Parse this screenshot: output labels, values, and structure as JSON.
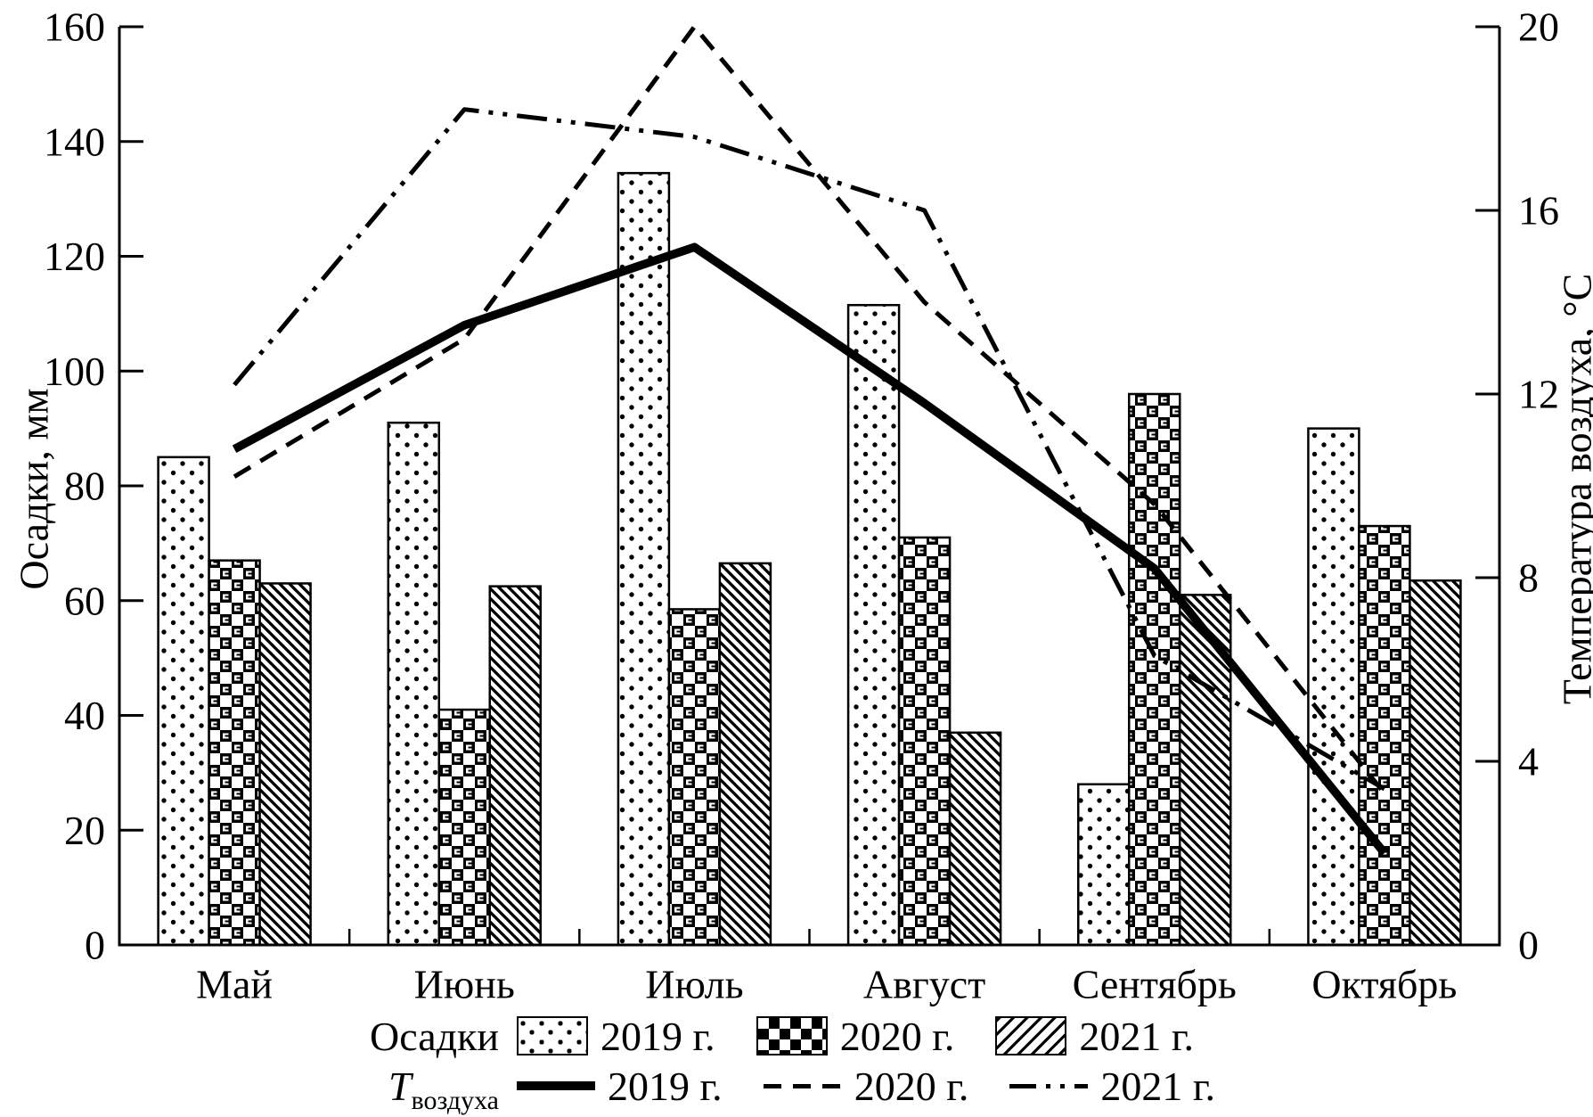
{
  "chart_data": {
    "type": "bar+line",
    "categories": [
      "Май",
      "Июнь",
      "Июль",
      "Август",
      "Сентябрь",
      "Октябрь"
    ],
    "left_axis": {
      "label": "Осадки, мм",
      "min": 0,
      "max": 160,
      "step": 20,
      "ticks": [
        0,
        20,
        40,
        60,
        80,
        100,
        120,
        140,
        160
      ]
    },
    "right_axis": {
      "label": "Температура воздуха, °С",
      "min": 0,
      "max": 20,
      "step": 4,
      "ticks": [
        0,
        4,
        8,
        12,
        16,
        20
      ]
    },
    "bar_series": [
      {
        "name": "2019 г.",
        "pattern": "dots",
        "values": [
          85,
          91,
          134.5,
          111.5,
          28,
          90
        ]
      },
      {
        "name": "2020 г.",
        "pattern": "checker",
        "values": [
          67,
          41,
          58.5,
          71,
          96,
          73
        ]
      },
      {
        "name": "2021 г.",
        "pattern": "diagonal",
        "values": [
          63,
          62.5,
          66.5,
          37,
          61,
          63.5
        ]
      }
    ],
    "line_series": [
      {
        "name": "2019 г.",
        "style": "solid",
        "values": [
          10.8,
          13.5,
          15.2,
          11.8,
          8.2,
          2.0
        ]
      },
      {
        "name": "2020 г.",
        "style": "dashed",
        "values": [
          10.2,
          13.2,
          20.0,
          14.0,
          9.6,
          3.3
        ]
      },
      {
        "name": "2021 г.",
        "style": "dashdotdot",
        "values": [
          12.2,
          18.2,
          17.6,
          16.0,
          6.3,
          3.4
        ]
      }
    ],
    "legend": {
      "bars_label": "Осадки",
      "lines_label_main": "T",
      "lines_label_sub": "воздуха"
    },
    "grid": "off",
    "legend_position": "bottom",
    "colors": {
      "ink": "#000000",
      "background": "#ffffff"
    }
  }
}
